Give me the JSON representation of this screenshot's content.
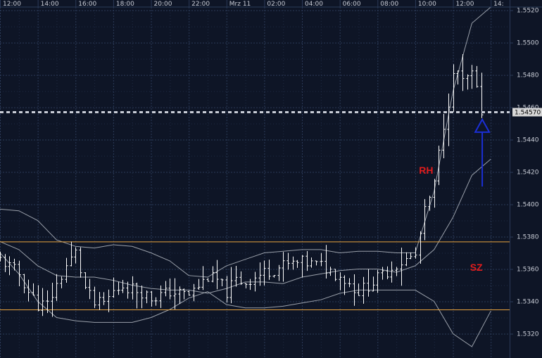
{
  "colors": {
    "background": "#0e1526",
    "grid": "#2b3a58",
    "band": "#9aa0aa",
    "bars": "#ffffff",
    "level": "#e8a33c",
    "dashed": "#c8ccd6",
    "annotation": "#e01c1c",
    "arrow": "#1b2fd6",
    "price_tag_bg": "#d8d8d8"
  },
  "chart_data": {
    "type": "ohlc",
    "x_axis_labels": [
      "12:00",
      "14:00",
      "16:00",
      "18:00",
      "20:00",
      "22:00",
      "Mrz 11",
      "02:00",
      "04:00",
      "06:00",
      "08:00",
      "10:00",
      "12:00",
      "14:"
    ],
    "y_axis_labels": [
      "1.5520",
      "1.5500",
      "1.5480",
      "1.5460",
      "1.5440",
      "1.5420",
      "1.5400",
      "1.5380",
      "1.5360",
      "1.5340",
      "1.5320"
    ],
    "y_ticks": [
      1.552,
      1.55,
      1.548,
      1.546,
      1.544,
      1.542,
      1.54,
      1.538,
      1.536,
      1.534,
      1.532
    ],
    "ylim": [
      1.5305,
      1.5522
    ],
    "x_range_hours": [
      0,
      27
    ],
    "bar_interval_hours": 0.25,
    "current_price": 1.5457,
    "current_price_label": "1.54570",
    "horizontal_levels": [
      1.5377,
      1.5335
    ],
    "annotations": [
      {
        "text": "RH",
        "t": 22.2,
        "price": 1.5419
      },
      {
        "text": "SZ",
        "t": 24.9,
        "price": 1.5359
      }
    ],
    "arrow": {
      "t": 25.55,
      "price_from": 1.5411,
      "price_to": 1.5449
    },
    "series": [
      {
        "name": "price",
        "anchors_t": [
          0,
          1,
          1.5,
          2,
          2.5,
          3,
          3.5,
          4,
          4.5,
          5,
          5.5,
          6,
          6.5,
          7,
          7.5,
          8,
          9,
          10,
          11,
          11.5,
          12,
          12.5,
          13,
          14,
          15,
          16,
          17,
          18,
          19,
          20,
          21,
          22,
          22.5,
          23,
          23.5,
          24,
          24.25,
          24.5,
          25,
          25.5
        ],
        "anchors_price": [
          1.5366,
          1.5357,
          1.5346,
          1.5338,
          1.5338,
          1.535,
          1.5362,
          1.537,
          1.5348,
          1.5338,
          1.5339,
          1.5346,
          1.535,
          1.5348,
          1.5346,
          1.5342,
          1.5346,
          1.5344,
          1.5355,
          1.5353,
          1.5346,
          1.5353,
          1.5352,
          1.5358,
          1.5362,
          1.5364,
          1.5362,
          1.5356,
          1.5346,
          1.5354,
          1.5363,
          1.5368,
          1.5395,
          1.5412,
          1.545,
          1.5478,
          1.5482,
          1.5475,
          1.548,
          1.5458
        ]
      },
      {
        "name": "band-mid",
        "x": [
          0,
          1,
          2,
          3,
          4,
          5,
          6,
          7,
          8,
          9,
          10,
          11,
          12,
          13,
          14,
          15,
          16,
          17,
          18,
          19,
          20,
          21,
          22,
          23,
          24,
          25,
          26
        ],
        "y": [
          1.5377,
          1.5372,
          1.5362,
          1.5356,
          1.5355,
          1.5355,
          1.5353,
          1.535,
          1.5348,
          1.5347,
          1.5347,
          1.5345,
          1.5348,
          1.5352,
          1.5352,
          1.5351,
          1.5355,
          1.5357,
          1.5359,
          1.536,
          1.536,
          1.5358,
          1.5362,
          1.5372,
          1.5392,
          1.5418,
          1.5428
        ]
      },
      {
        "name": "band-upper",
        "x": [
          0,
          1,
          2,
          3,
          4,
          5,
          6,
          7,
          8,
          9,
          10,
          11,
          12,
          13,
          14,
          15,
          16,
          17,
          18,
          19,
          20,
          21,
          22,
          23,
          24,
          25,
          26
        ],
        "y": [
          1.5397,
          1.5396,
          1.539,
          1.5378,
          1.5374,
          1.5373,
          1.5375,
          1.5374,
          1.537,
          1.5365,
          1.5356,
          1.5355,
          1.5362,
          1.5366,
          1.537,
          1.5371,
          1.5372,
          1.5372,
          1.537,
          1.5371,
          1.5371,
          1.537,
          1.537,
          1.5408,
          1.547,
          1.5512,
          1.5522
        ]
      },
      {
        "name": "band-lower",
        "x": [
          0,
          1,
          2,
          3,
          4,
          5,
          6,
          7,
          8,
          9,
          10,
          11,
          12,
          13,
          14,
          15,
          16,
          17,
          18,
          19,
          20,
          21,
          22,
          23,
          24,
          25,
          26
        ],
        "y": [
          1.537,
          1.5357,
          1.534,
          1.533,
          1.5328,
          1.5327,
          1.5327,
          1.5327,
          1.533,
          1.5335,
          1.5342,
          1.5346,
          1.5338,
          1.5336,
          1.5336,
          1.5337,
          1.5339,
          1.5341,
          1.5345,
          1.5347,
          1.5347,
          1.5347,
          1.5347,
          1.534,
          1.532,
          1.5312,
          1.5334
        ]
      }
    ]
  }
}
